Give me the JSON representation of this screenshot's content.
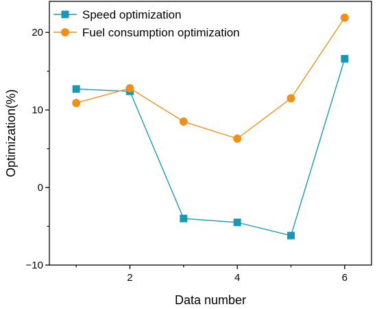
{
  "chart_data": {
    "type": "line",
    "title": "",
    "xlabel": "Data number",
    "ylabel": "Optimization(%)",
    "x": [
      1,
      2,
      3,
      4,
      5,
      6
    ],
    "xlim": [
      0.5,
      6.5
    ],
    "ylim": [
      -10,
      24
    ],
    "xticks": [
      2,
      4,
      6
    ],
    "yticks": [
      -10,
      0,
      10,
      20
    ],
    "grid": false,
    "legend_position": "top-left",
    "series": [
      {
        "name": "Speed optimization",
        "values": [
          12.7,
          12.4,
          -4.0,
          -4.5,
          -6.2,
          16.6
        ],
        "color": "#1a97b7",
        "marker": "square"
      },
      {
        "name": "Fuel consumption optimization",
        "values": [
          10.9,
          12.8,
          8.5,
          6.3,
          11.5,
          21.9
        ],
        "color": "#f28f16",
        "marker": "circle"
      }
    ]
  }
}
